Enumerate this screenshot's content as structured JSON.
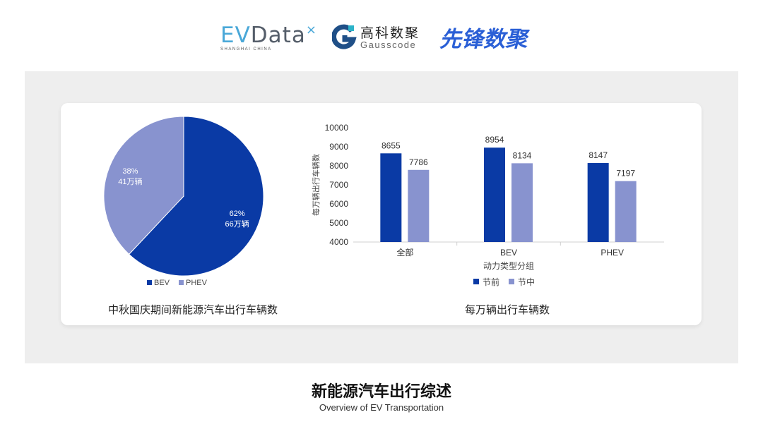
{
  "logos": {
    "evdata": "EVData",
    "evdata_sub": "SHANGHAI CHINA",
    "gauss_cn": "高科数聚",
    "gauss_en": "Gausscode",
    "xianfeng": "先锋数聚"
  },
  "colors": {
    "before": "#0a3aa5",
    "during": "#8893cf",
    "panel": "#eeeeee"
  },
  "chart_data": [
    {
      "type": "pie",
      "title": "中秋国庆期间新能源汽车出行车辆数",
      "slices": [
        {
          "name": "BEV",
          "percent": 62,
          "value_label": "66万辆",
          "label": "62%"
        },
        {
          "name": "PHEV",
          "percent": 38,
          "value_label": "41万辆",
          "label": "38%"
        }
      ],
      "legend": "bottom"
    },
    {
      "type": "bar",
      "title": "每万辆出行车辆数",
      "xlabel": "动力类型分组",
      "ylabel": "每万辆出行车辆数",
      "categories": [
        "全部",
        "BEV",
        "PHEV"
      ],
      "series": [
        {
          "name": "节前",
          "values": [
            8655,
            8954,
            8147
          ]
        },
        {
          "name": "节中",
          "values": [
            7786,
            8134,
            7197
          ]
        }
      ],
      "ylim": [
        4000,
        10000
      ],
      "yticks": [
        4000,
        5000,
        6000,
        7000,
        8000,
        9000,
        10000
      ],
      "grid": false,
      "legend": "bottom"
    }
  ],
  "footer": {
    "title": "新能源汽车出行综述",
    "subtitle": "Overview of EV Transportation"
  }
}
